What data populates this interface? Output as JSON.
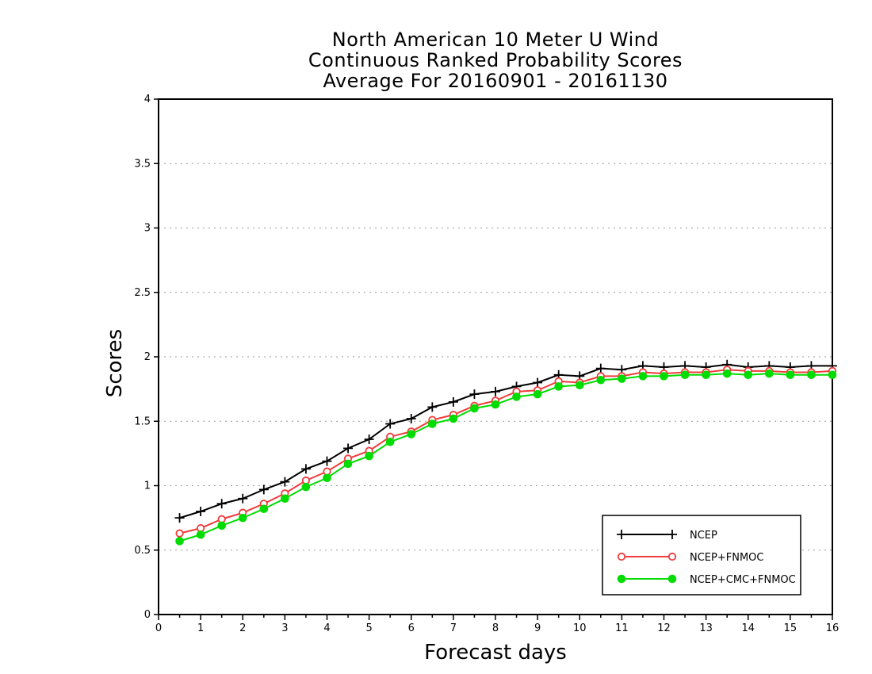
{
  "chart_data": {
    "type": "line",
    "title": [
      "North American 10 Meter U Wind",
      "Continuous Ranked Probability Scores",
      "Average For 20160901 - 20161130"
    ],
    "xlabel": "Forecast days",
    "ylabel": "Scores",
    "xlim": [
      0,
      16
    ],
    "ylim": [
      0,
      4
    ],
    "x_ticks": [
      "0",
      "1",
      "2",
      "3",
      "4",
      "5",
      "6",
      "7",
      "8",
      "9",
      "10",
      "11",
      "12",
      "13",
      "14",
      "15",
      "16"
    ],
    "y_ticks": [
      "0",
      "0.5",
      "1",
      "1.5",
      "2",
      "2.5",
      "3",
      "3.5",
      "4"
    ],
    "grid": true,
    "legend_position": "bottom-right",
    "x": [
      0.5,
      1,
      1.5,
      2,
      2.5,
      3,
      3.5,
      4,
      4.5,
      5,
      5.5,
      6,
      6.5,
      7,
      7.5,
      8,
      8.5,
      9,
      9.5,
      10,
      10.5,
      11,
      11.5,
      12,
      12.5,
      13,
      13.5,
      14,
      14.5,
      15,
      15.5,
      16
    ],
    "series": [
      {
        "name": "NCEP",
        "color": "#000000",
        "marker": "plus",
        "values": [
          0.75,
          0.8,
          0.86,
          0.9,
          0.97,
          1.03,
          1.13,
          1.19,
          1.29,
          1.36,
          1.48,
          1.52,
          1.61,
          1.65,
          1.71,
          1.73,
          1.77,
          1.8,
          1.86,
          1.85,
          1.91,
          1.9,
          1.93,
          1.92,
          1.93,
          1.92,
          1.94,
          1.92,
          1.93,
          1.92,
          1.93,
          1.93
        ]
      },
      {
        "name": "NCEP+FNMOC",
        "color": "#f03c3c",
        "marker": "open-circle",
        "values": [
          0.63,
          0.67,
          0.74,
          0.79,
          0.86,
          0.94,
          1.04,
          1.11,
          1.21,
          1.27,
          1.38,
          1.42,
          1.51,
          1.55,
          1.62,
          1.66,
          1.73,
          1.74,
          1.81,
          1.8,
          1.85,
          1.85,
          1.88,
          1.87,
          1.88,
          1.88,
          1.9,
          1.89,
          1.89,
          1.88,
          1.88,
          1.89
        ]
      },
      {
        "name": "NCEP+CMC+FNMOC",
        "color": "#00dc00",
        "marker": "filled-circle",
        "values": [
          0.57,
          0.62,
          0.69,
          0.75,
          0.82,
          0.9,
          0.99,
          1.06,
          1.17,
          1.23,
          1.34,
          1.4,
          1.48,
          1.52,
          1.6,
          1.63,
          1.69,
          1.71,
          1.77,
          1.78,
          1.82,
          1.83,
          1.85,
          1.85,
          1.86,
          1.86,
          1.87,
          1.86,
          1.87,
          1.86,
          1.86,
          1.86
        ]
      }
    ]
  }
}
